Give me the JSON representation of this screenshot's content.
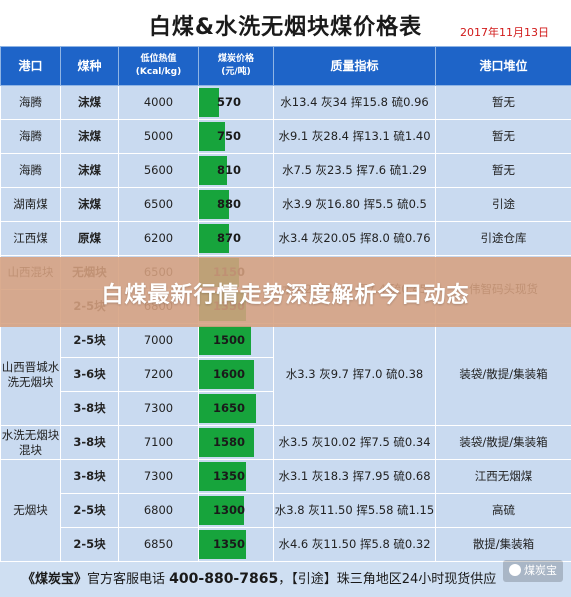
{
  "title": "白煤&水洗无烟块煤价格表",
  "date": "2017年11月13日",
  "headers": [
    "港口",
    "煤种",
    "低位热值\n(Kcal/kg)",
    "煤炭价格\n(元/吨)",
    "质量指标",
    "港口堆位"
  ],
  "rows": [
    {
      "port": "海腾",
      "kind": "沫煤",
      "heat": "4000",
      "price": 570,
      "quality": "水13.4 灰34 挥15.8 硫0.96",
      "yard": "暂无"
    },
    {
      "port": "海腾",
      "kind": "沫煤",
      "heat": "5000",
      "price": 750,
      "quality": "水9.1 灰28.4 挥13.1 硫1.40",
      "yard": "暂无"
    },
    {
      "port": "海腾",
      "kind": "沫煤",
      "heat": "5600",
      "price": 810,
      "quality": "水7.5 灰23.5 挥7.6 硫1.29",
      "yard": "暂无"
    },
    {
      "port": "湖南煤",
      "kind": "沫煤",
      "heat": "6500",
      "price": 880,
      "quality": "水3.9 灰16.80 挥5.5 硫0.5",
      "yard": "引途"
    },
    {
      "port": "江西煤",
      "kind": "原煤",
      "heat": "6200",
      "price": 870,
      "quality": "水3.4 灰20.05 挥8.0 硫0.76",
      "yard": "引途仓库"
    },
    {
      "port": "山西混块",
      "kind": "无烟块",
      "heat": "6500",
      "price": 1150,
      "quality": "水4.2 灰19.8 挥7.4 硫0.45",
      "yard": "伟智码头现货"
    },
    {
      "port": "",
      "kind": "2-5块",
      "heat": "6800",
      "price": 1350,
      "quality": "",
      "yard": ""
    },
    {
      "port": "山西晋城水洗无烟块",
      "kind": "2-5块",
      "heat": "7000",
      "price": 1500,
      "quality": "水3.3 灰9.7 挥7.0 硫0.38",
      "yard": "装袋/散提/集装箱"
    },
    {
      "port": "",
      "kind": "3-6块",
      "heat": "7200",
      "price": 1600,
      "quality": "",
      "yard": ""
    },
    {
      "port": "",
      "kind": "3-8块",
      "heat": "7300",
      "price": 1650,
      "quality": "",
      "yard": ""
    },
    {
      "port": "水洗无烟块混块",
      "kind": "3-8块",
      "heat": "7100",
      "price": 1580,
      "quality": "水3.5 灰10.02 挥7.5 硫0.34",
      "yard": "装袋/散提/集装箱"
    },
    {
      "port": "无烟块",
      "kind": "3-8块",
      "heat": "7300",
      "price": 1350,
      "quality": "水3.1 灰18.3 挥7.95 硫0.68",
      "yard": "江西无烟煤"
    },
    {
      "port": "",
      "kind": "2-5块",
      "heat": "6800",
      "price": 1300,
      "quality": "水3.8 灰11.50 挥5.58 硫1.15",
      "yard": "高硫"
    },
    {
      "port": "",
      "kind": "2-5块",
      "heat": "6850",
      "price": 1350,
      "quality": "水4.6 灰11.50 挥5.8 硫0.32",
      "yard": "散提/集装箱"
    }
  ],
  "banner": "白煤最新行情走势深度解析今日动态",
  "footer": {
    "brand": "《煤炭宝》",
    "text1": "官方客服电话",
    "phone": "400-880-7865",
    "text2": "，【引途】珠三角地区24小时现货供应"
  },
  "watermark": "煤炭宝",
  "colors": {
    "header_bg": "#1e64c8",
    "cell_bg": "#c9daf0",
    "bar": "#17a43c",
    "date": "#d11a1a"
  },
  "price_max": 1650
}
